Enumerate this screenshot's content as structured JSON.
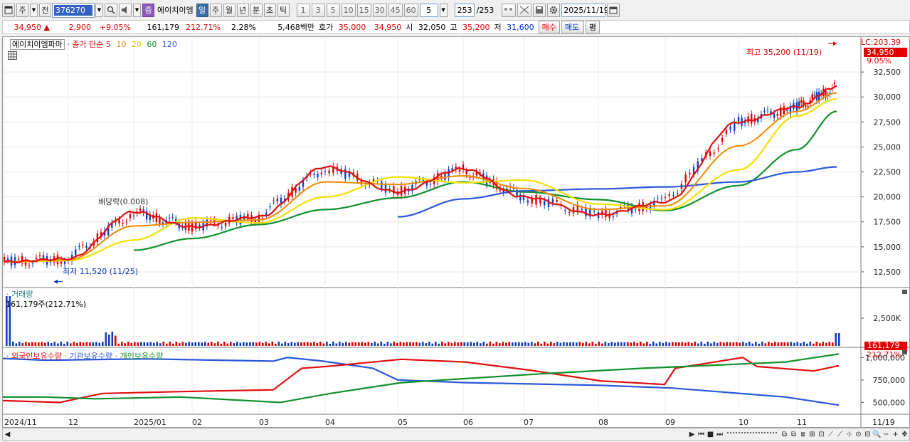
{
  "toolbar": {
    "period_mode": "주",
    "prev_label": "전",
    "stock_code": "376270",
    "stock_name_badge": "증",
    "stock_name": "에이치이엠",
    "periods": [
      "일",
      "주",
      "월",
      "년",
      "분",
      "초",
      "틱"
    ],
    "active_period": "일",
    "intervals": [
      "1",
      "3",
      "5",
      "10",
      "15",
      "30",
      "45",
      "60"
    ],
    "interval_value": "5",
    "count": "253",
    "count_total": "/253",
    "date": "2025/11/19"
  },
  "quote": {
    "price": "34,950",
    "change_arrow": "▲",
    "change": "2,900",
    "change_pct": "+9.05%",
    "volume": "161,179",
    "volume_ratio": "212.71%",
    "turnover": "2.28%",
    "amount": "5,468백만",
    "bid_label": "호가",
    "bid1": "35,000",
    "bid2": "34,950",
    "open_label": "시",
    "open": "32,050",
    "high_label": "고",
    "high": "35,200",
    "low_label": "저",
    "low": "31,600",
    "buy_label": "매수",
    "sell_label": "매도",
    "flat_label": "평"
  },
  "price_panel": {
    "stock_name": "에이치이엠파마",
    "ma_label": "종가 단순",
    "ma_periods": [
      "5",
      "10",
      "20",
      "60",
      "120"
    ],
    "ma_colors": [
      "#e01010",
      "#f08a00",
      "#f2e000",
      "#12902c",
      "#2a58d8"
    ],
    "lc_label": "LC:203.39",
    "last_price_tag": "34,950",
    "last_pct_tag": "9.05%",
    "high_annotation": "최고 35,200 (11/19)",
    "low_annotation": "최저 11,520 (11/25)",
    "dividend_annotation": "배당락(0.008)",
    "y_ticks": [
      "32,500",
      "30,000",
      "27,500",
      "25,000",
      "22,500",
      "20,000",
      "17,500",
      "15,000",
      "12,500"
    ]
  },
  "volume_panel": {
    "title": "거래량",
    "value": "161,179주(212.71%)",
    "y_tick": "2,500K",
    "last_tag": "161,179",
    "last_pct_tag": "212.71%"
  },
  "holding_panel": {
    "legend": [
      "외국인보유수량",
      "기관보유수량",
      "개인보유수량"
    ],
    "legend_colors": [
      "#e01010",
      "#2a58d8",
      "#12902c"
    ],
    "y_ticks": [
      "1,000,000",
      "750,000",
      "500,000"
    ]
  },
  "x_axis": {
    "labels": [
      "2024/11",
      "12",
      "2025/01",
      "02",
      "03",
      "04",
      "05",
      "06",
      "07",
      "08",
      "09",
      "10",
      "11",
      "11/19"
    ]
  },
  "chart_data": {
    "type": "line",
    "x": [
      "2024/11",
      "12",
      "2025/01",
      "02",
      "03",
      "04",
      "05",
      "06",
      "07",
      "08",
      "09",
      "10",
      "11",
      "11/19"
    ],
    "series": [
      {
        "name": "5",
        "values": [
          13500,
          13800,
          18500,
          17000,
          18000,
          23000,
          20500,
          22800,
          20000,
          18200,
          19500,
          27500,
          29000,
          31000
        ]
      },
      {
        "name": "120",
        "values": [
          null,
          null,
          null,
          null,
          null,
          null,
          18000,
          19800,
          20600,
          20800,
          21000,
          21500,
          22500,
          23000
        ]
      }
    ],
    "ylim": [
      11000,
      36000
    ],
    "high": 35200,
    "low": 11520
  }
}
